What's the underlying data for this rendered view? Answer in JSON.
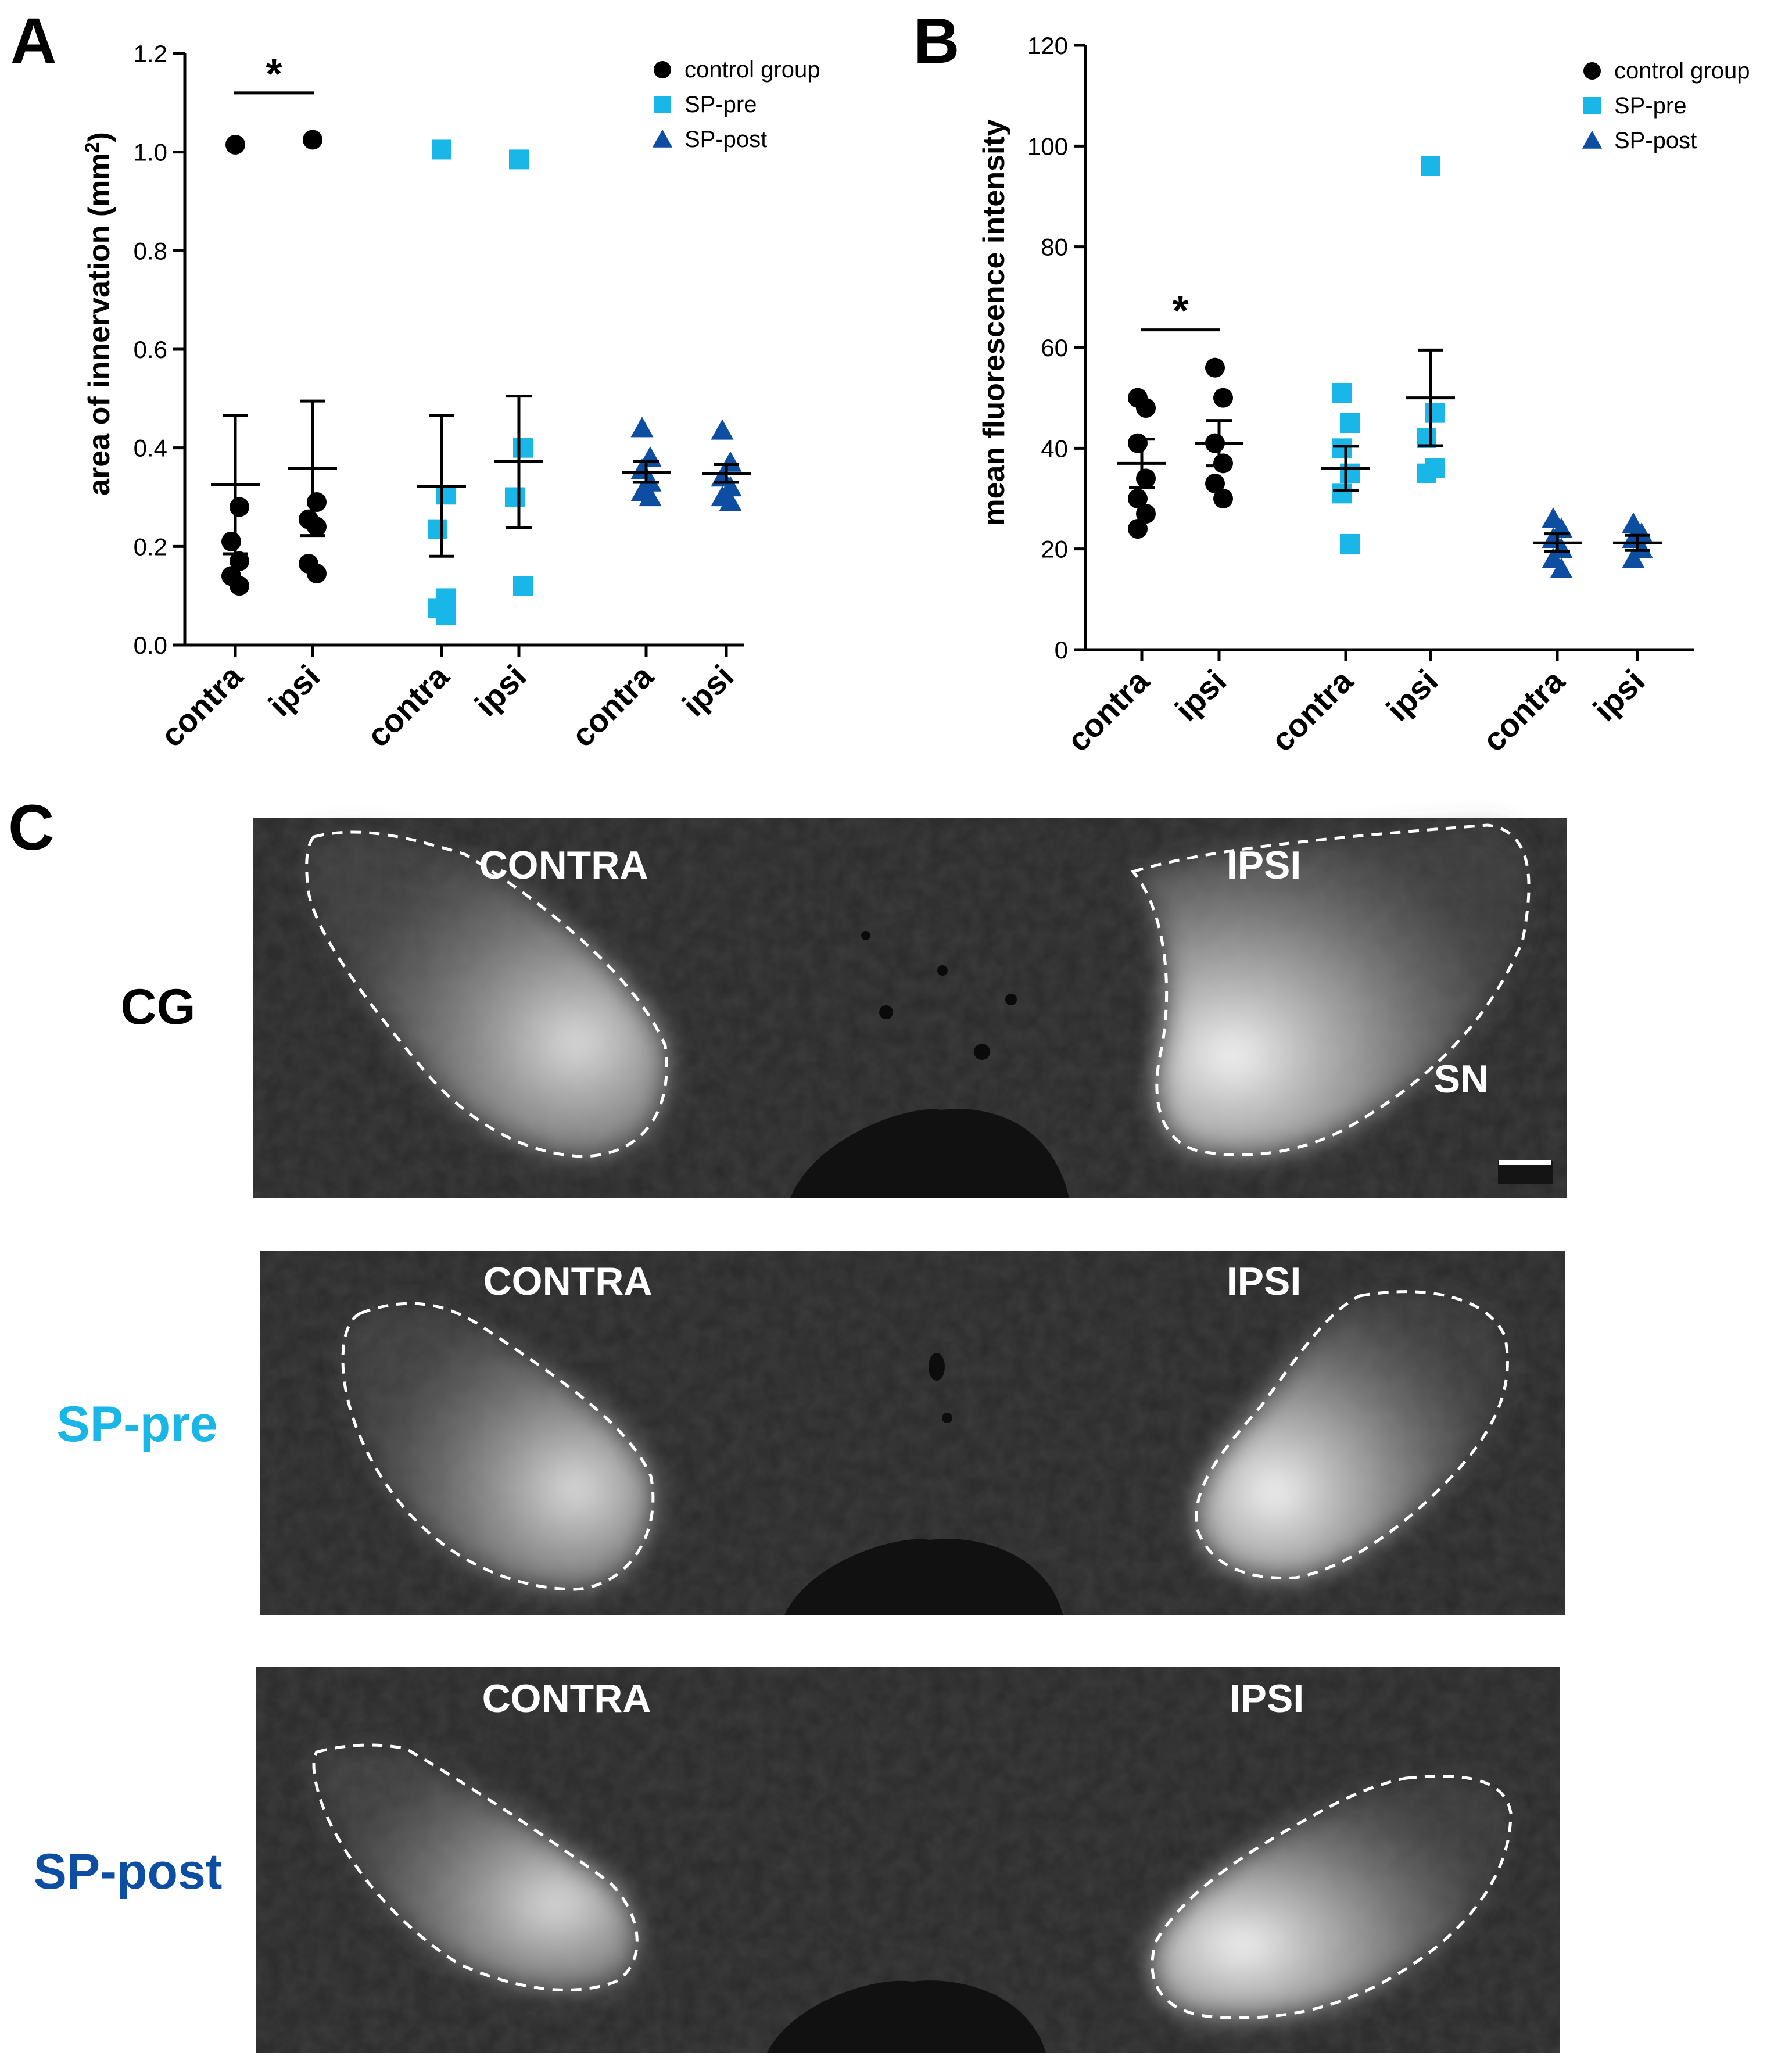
{
  "panel_labels": {
    "a": "A",
    "b": "B",
    "c": "C"
  },
  "colors": {
    "control": "#000000",
    "sp_pre": "#19b6e8",
    "sp_post": "#0d4ea3"
  },
  "legend": {
    "control": "control group",
    "sp_pre": "SP-pre",
    "sp_post": "SP-post"
  },
  "chart_data": [
    {
      "type": "scatter",
      "panel": "A",
      "ylabel_main": "area of innervation (mm",
      "ylabel_sup": "2",
      "ylabel_close": ")",
      "ylim": [
        0,
        1.2
      ],
      "ticks": [
        "0.0",
        "0.2",
        "0.4",
        "0.6",
        "0.8",
        "1.0",
        "1.2"
      ],
      "tick_values": [
        0,
        0.2,
        0.4,
        0.6,
        0.8,
        1.0,
        1.2
      ],
      "categories": [
        "contra",
        "ipsi",
        "contra",
        "ipsi",
        "contra",
        "ipsi"
      ],
      "significance": {
        "label": "*",
        "between": [
          0,
          1
        ],
        "y": 1.12
      },
      "series": [
        {
          "name": "control group",
          "marker": "circle",
          "groups": [
            {
              "cat": 0,
              "points": [
                1.015,
                0.28,
                0.21,
                0.17,
                0.14,
                0.12
              ],
              "mean": 0.325,
              "sem_low": 0.185,
              "sem_high": 0.465
            },
            {
              "cat": 1,
              "points": [
                1.025,
                0.29,
                0.255,
                0.24,
                0.165,
                0.145
              ],
              "mean": 0.358,
              "sem_low": 0.222,
              "sem_high": 0.495
            }
          ]
        },
        {
          "name": "SP-pre",
          "marker": "square",
          "groups": [
            {
              "cat": 2,
              "points": [
                1.005,
                0.305,
                0.235,
                0.095,
                0.075,
                0.06
              ],
              "mean": 0.322,
              "sem_low": 0.18,
              "sem_high": 0.465
            },
            {
              "cat": 3,
              "points": [
                0.985,
                0.4,
                0.3,
                0.12
              ],
              "mean": 0.372,
              "sem_low": 0.238,
              "sem_high": 0.505
            }
          ]
        },
        {
          "name": "SP-post",
          "marker": "triangle",
          "groups": [
            {
              "cat": 4,
              "points": [
                0.44,
                0.38,
                0.355,
                0.33,
                0.31,
                0.3
              ],
              "mean": 0.35,
              "sem_low": 0.33,
              "sem_high": 0.373
            },
            {
              "cat": 5,
              "points": [
                0.435,
                0.37,
                0.34,
                0.32,
                0.3,
                0.29
              ],
              "mean": 0.348,
              "sem_low": 0.33,
              "sem_high": 0.366
            }
          ]
        }
      ]
    },
    {
      "type": "scatter",
      "panel": "B",
      "ylabel_main": "mean fluorescence intensity",
      "ylim": [
        0,
        120
      ],
      "ticks": [
        "0",
        "20",
        "40",
        "60",
        "80",
        "100",
        "120"
      ],
      "tick_values": [
        0,
        20,
        40,
        60,
        80,
        100,
        120
      ],
      "categories": [
        "contra",
        "ipsi",
        "contra",
        "ipsi",
        "contra",
        "ipsi"
      ],
      "significance": {
        "label": "*",
        "between": [
          0,
          1
        ],
        "y": 63.5
      },
      "series": [
        {
          "name": "control group",
          "marker": "circle",
          "groups": [
            {
              "cat": 0,
              "points": [
                50,
                48,
                41,
                34,
                30,
                27,
                24
              ],
              "mean": 37,
              "sem_low": 32.2,
              "sem_high": 41.8
            },
            {
              "cat": 1,
              "points": [
                56,
                50,
                41,
                37,
                33,
                30
              ],
              "mean": 41,
              "sem_low": 36.5,
              "sem_high": 45.5
            }
          ]
        },
        {
          "name": "SP-pre",
          "marker": "square",
          "groups": [
            {
              "cat": 2,
              "points": [
                51,
                45,
                40,
                35,
                31,
                21
              ],
              "mean": 36,
              "sem_low": 31.6,
              "sem_high": 40.4
            },
            {
              "cat": 3,
              "points": [
                96,
                47,
                42,
                36,
                35
              ],
              "mean": 50,
              "sem_low": 40.5,
              "sem_high": 59.5
            }
          ]
        },
        {
          "name": "SP-post",
          "marker": "triangle",
          "groups": [
            {
              "cat": 4,
              "points": [
                26,
                24,
                22,
                20,
                18,
                16
              ],
              "mean": 21.2,
              "sem_low": 19.5,
              "sem_high": 23
            },
            {
              "cat": 5,
              "points": [
                25,
                23,
                22,
                20,
                18
              ],
              "mean": 21.2,
              "sem_low": 19.7,
              "sem_high": 22.7
            }
          ]
        }
      ]
    }
  ],
  "panel_c": {
    "rows": [
      {
        "label": "CG",
        "left": "CONTRA",
        "right": "IPSI",
        "annotation": "SN"
      },
      {
        "label": "SP-pre",
        "left": "CONTRA",
        "right": "IPSI"
      },
      {
        "label": "SP-post",
        "left": "CONTRA",
        "right": "IPSI"
      }
    ]
  }
}
